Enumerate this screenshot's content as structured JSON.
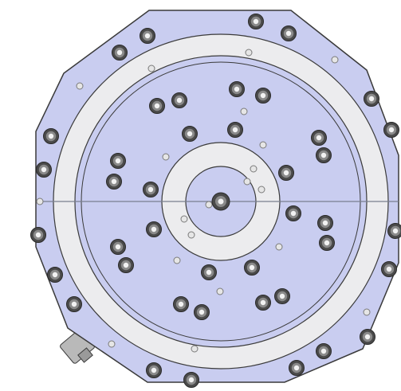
{
  "drawing": {
    "colors": {
      "plate_fill": "#c9cdf0",
      "plate_outline": "#3a3a3a",
      "ring_fill": "#ececee",
      "bolt_outer": "#4a4a4a",
      "bolt_inner": "#8a8a8a",
      "bolt_center": "#f2f2f2",
      "pin_fill": "#e6e6e6",
      "pin_stroke": "#7a7a7a",
      "axis_line": "#7a7f8f",
      "connector_fill": "#b9b9b9",
      "background": "#ffffff"
    },
    "parts": [
      "octagonal-base-plate",
      "outer-annular-ring",
      "inner-annular-ring",
      "center-bolt",
      "bolt-pattern",
      "dowel-pins",
      "side-connector",
      "horizontal-axis-line"
    ]
  }
}
